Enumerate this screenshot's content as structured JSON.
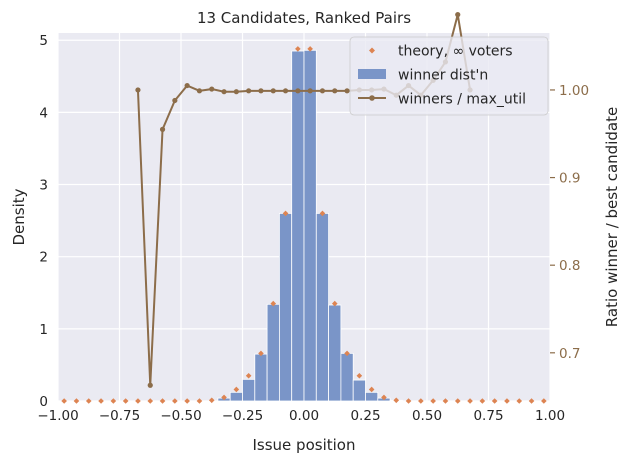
{
  "chart_data": {
    "type": "bar",
    "title": "13 Candidates, Ranked Pairs",
    "xlabel": "Issue position",
    "ylabel": "Density",
    "y2label": "Ratio winner / best candidate",
    "xlim": [
      -1.0,
      1.0
    ],
    "ylim": [
      0,
      5.1
    ],
    "y2lim": [
      0.645,
      1.065
    ],
    "xticks": [
      -1.0,
      -0.75,
      -0.5,
      -0.25,
      0.0,
      0.25,
      0.5,
      0.75,
      1.0
    ],
    "xtick_labels": [
      "−1.00",
      "−0.75",
      "−0.50",
      "−0.25",
      "0.00",
      "0.25",
      "0.50",
      "0.75",
      "1.00"
    ],
    "yticks": [
      0,
      1,
      2,
      3,
      4,
      5
    ],
    "ytick_labels": [
      "0",
      "1",
      "2",
      "3",
      "4",
      "5"
    ],
    "y2ticks": [
      0.7,
      0.8,
      0.9,
      1.0
    ],
    "y2tick_labels": [
      "0.7",
      "0.8",
      "0.9",
      "1.00"
    ],
    "grid": true,
    "legend_position": "top-right",
    "colors": {
      "background": "#eaeaf2",
      "bars": "#7a95c8",
      "theory": "#dd8452",
      "ratio": "#8c6d4a",
      "grid": "#ffffff"
    },
    "legend": [
      {
        "label": "theory, ∞ voters",
        "kind": "marker",
        "color": "#dd8452"
      },
      {
        "label": "winner dist'n",
        "kind": "patch",
        "color": "#7a95c8"
      },
      {
        "label": "winners / max_util",
        "kind": "line",
        "color": "#8c6d4a"
      }
    ],
    "series": [
      {
        "name": "winner dist'n",
        "kind": "bar",
        "bin_width": 0.05,
        "x": [
          -0.975,
          -0.925,
          -0.875,
          -0.825,
          -0.775,
          -0.725,
          -0.675,
          -0.625,
          -0.575,
          -0.525,
          -0.475,
          -0.425,
          -0.375,
          -0.325,
          -0.275,
          -0.225,
          -0.175,
          -0.125,
          -0.075,
          -0.025,
          0.025,
          0.075,
          0.125,
          0.175,
          0.225,
          0.275,
          0.325,
          0.375,
          0.425,
          0.475,
          0.525,
          0.575,
          0.625,
          0.675,
          0.725,
          0.775,
          0.825,
          0.875,
          0.925,
          0.975
        ],
        "values": [
          0,
          0,
          0,
          0,
          0,
          0,
          0,
          0,
          0,
          0,
          0,
          0,
          0,
          0.04,
          0.12,
          0.3,
          0.65,
          1.34,
          2.6,
          4.85,
          4.86,
          2.6,
          1.33,
          0.66,
          0.29,
          0.12,
          0.04,
          0.01,
          0,
          0,
          0,
          0,
          0,
          0,
          0,
          0,
          0,
          0,
          0,
          0
        ]
      },
      {
        "name": "theory, ∞ voters",
        "kind": "scatter",
        "x": [
          -0.975,
          -0.925,
          -0.875,
          -0.825,
          -0.775,
          -0.725,
          -0.675,
          -0.625,
          -0.575,
          -0.525,
          -0.475,
          -0.425,
          -0.375,
          -0.325,
          -0.275,
          -0.225,
          -0.175,
          -0.125,
          -0.075,
          -0.025,
          0.025,
          0.075,
          0.125,
          0.175,
          0.225,
          0.275,
          0.325,
          0.375,
          0.425,
          0.475,
          0.525,
          0.575,
          0.625,
          0.675,
          0.725,
          0.775,
          0.825,
          0.875,
          0.925,
          0.975
        ],
        "values": [
          0,
          0,
          0,
          0,
          0,
          0,
          0,
          0,
          0,
          0,
          0,
          0,
          0.01,
          0.05,
          0.16,
          0.35,
          0.66,
          1.35,
          2.6,
          4.88,
          4.88,
          2.6,
          1.35,
          0.66,
          0.35,
          0.16,
          0.05,
          0.01,
          0,
          0,
          0,
          0,
          0,
          0,
          0,
          0,
          0,
          0,
          0,
          0
        ]
      },
      {
        "name": "winners / max_util",
        "kind": "line",
        "axis": "right",
        "x": [
          -0.675,
          -0.625,
          -0.575,
          -0.525,
          -0.475,
          -0.425,
          -0.375,
          -0.325,
          -0.275,
          -0.225,
          -0.175,
          -0.125,
          -0.075,
          -0.025,
          0.025,
          0.075,
          0.125,
          0.175,
          0.225,
          0.275,
          0.325,
          0.375,
          0.425,
          0.475,
          0.525,
          0.575,
          0.625,
          0.675
        ],
        "values": [
          1.0,
          0.663,
          0.955,
          0.988,
          1.005,
          0.999,
          1.001,
          0.998,
          0.998,
          0.999,
          0.999,
          0.999,
          0.999,
          0.999,
          0.999,
          0.999,
          0.999,
          0.999,
          1.0,
          1.0,
          1.001,
          0.994,
          1.005,
          0.994,
          1.011,
          1.032,
          1.086,
          1.0
        ]
      }
    ]
  }
}
